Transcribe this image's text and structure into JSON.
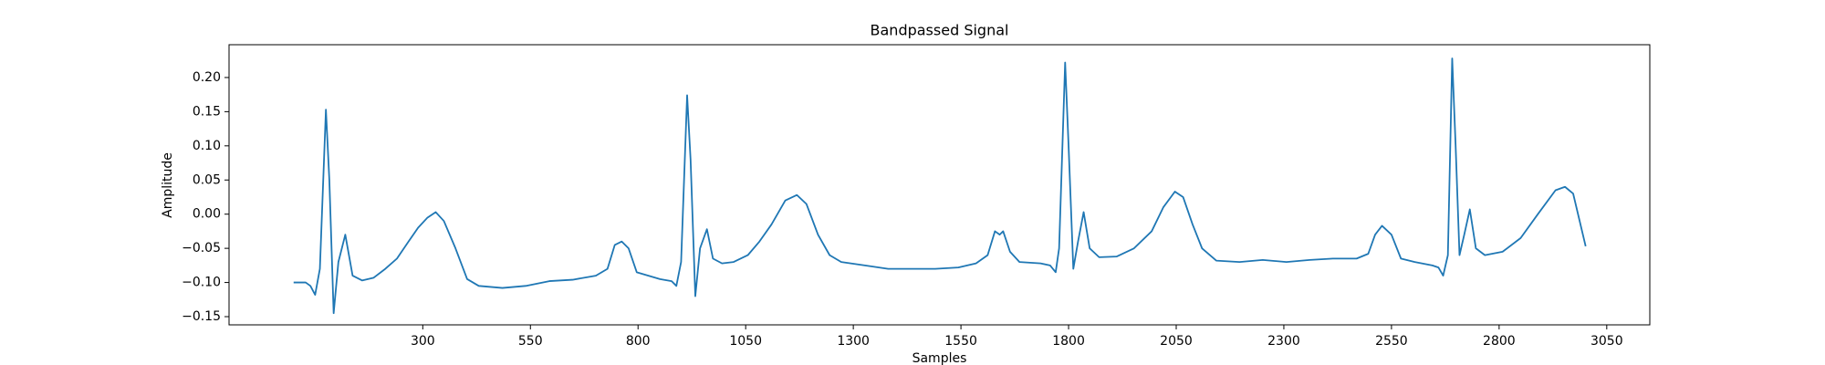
{
  "chart_data": {
    "type": "line",
    "title": "Bandpassed Signal",
    "x_label": "Samples",
    "y_label": "Amplitude",
    "color": "#1f77b4",
    "x": [
      0,
      28,
      39,
      50,
      61,
      75,
      83,
      93,
      104,
      120,
      137,
      159,
      186,
      213,
      240,
      267,
      289,
      311,
      330,
      349,
      376,
      403,
      430,
      485,
      539,
      594,
      648,
      702,
      729,
      746,
      762,
      778,
      797,
      824,
      851,
      878,
      889,
      900,
      914,
      922,
      933,
      944,
      960,
      974,
      995,
      1022,
      1055,
      1082,
      1110,
      1142,
      1169,
      1191,
      1218,
      1245,
      1272,
      1327,
      1381,
      1435,
      1490,
      1544,
      1585,
      1612,
      1629,
      1640,
      1648,
      1664,
      1686,
      1735,
      1757,
      1770,
      1778,
      1792,
      1800,
      1811,
      1822,
      1835,
      1849,
      1871,
      1912,
      1952,
      1993,
      2020,
      2047,
      2066,
      2088,
      2110,
      2143,
      2197,
      2251,
      2306,
      2360,
      2414,
      2469,
      2496,
      2512,
      2528,
      2550,
      2572,
      2604,
      2645,
      2659,
      2670,
      2681,
      2691,
      2699,
      2708,
      2719,
      2732,
      2746,
      2767,
      2808,
      2850,
      2890,
      2931,
      2953,
      2972,
      3001
    ],
    "values": [
      -0.1,
      -0.1,
      -0.105,
      -0.118,
      -0.08,
      0.153,
      0.05,
      -0.145,
      -0.07,
      -0.03,
      -0.09,
      -0.097,
      -0.093,
      -0.08,
      -0.065,
      -0.04,
      -0.02,
      -0.005,
      0.003,
      -0.01,
      -0.05,
      -0.095,
      -0.105,
      -0.108,
      -0.105,
      -0.098,
      -0.096,
      -0.09,
      -0.08,
      -0.045,
      -0.04,
      -0.05,
      -0.085,
      -0.09,
      -0.095,
      -0.098,
      -0.105,
      -0.07,
      0.174,
      0.08,
      -0.12,
      -0.05,
      -0.022,
      -0.065,
      -0.072,
      -0.07,
      -0.06,
      -0.04,
      -0.015,
      0.02,
      0.028,
      0.015,
      -0.03,
      -0.06,
      -0.07,
      -0.075,
      -0.08,
      -0.08,
      -0.08,
      -0.078,
      -0.072,
      -0.06,
      -0.025,
      -0.03,
      -0.025,
      -0.055,
      -0.07,
      -0.072,
      -0.075,
      -0.085,
      -0.05,
      0.222,
      0.1,
      -0.08,
      -0.04,
      0.003,
      -0.05,
      -0.063,
      -0.062,
      -0.05,
      -0.025,
      0.01,
      0.033,
      0.025,
      -0.015,
      -0.05,
      -0.068,
      -0.07,
      -0.067,
      -0.07,
      -0.067,
      -0.065,
      -0.065,
      -0.058,
      -0.03,
      -0.017,
      -0.03,
      -0.065,
      -0.07,
      -0.075,
      -0.078,
      -0.09,
      -0.06,
      0.228,
      0.1,
      -0.06,
      -0.03,
      0.007,
      -0.05,
      -0.06,
      -0.055,
      -0.035,
      0.0,
      0.035,
      0.04,
      0.03,
      -0.047
    ],
    "xlim": [
      -150,
      3150
    ],
    "ylim": [
      -0.162,
      0.248
    ],
    "xticks": [
      300,
      550,
      800,
      1050,
      1300,
      1550,
      1800,
      2050,
      2300,
      2550,
      2800,
      3050
    ],
    "yticks": [
      {
        "value": -0.15,
        "label": "−0.15"
      },
      {
        "value": -0.1,
        "label": "−0.10"
      },
      {
        "value": -0.05,
        "label": "−0.05"
      },
      {
        "value": 0,
        "label": "0.00"
      },
      {
        "value": 0.05,
        "label": "0.05"
      },
      {
        "value": 0.1,
        "label": "0.10"
      },
      {
        "value": 0.15,
        "label": "0.15"
      },
      {
        "value": 0.2,
        "label": "0.20"
      }
    ]
  }
}
